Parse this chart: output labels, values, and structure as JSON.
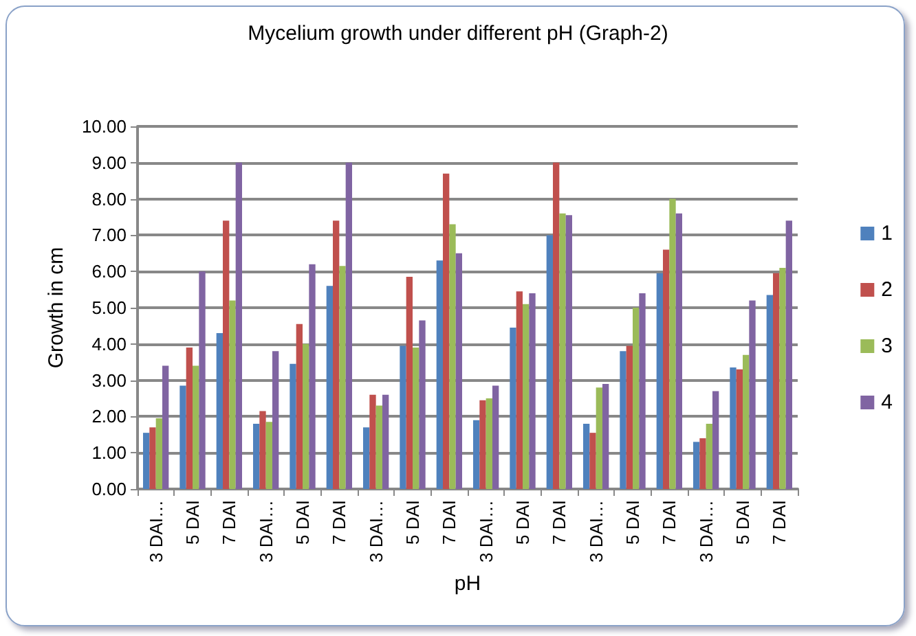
{
  "chart_data": {
    "type": "bar",
    "title": "Mycelium growth under different pH (Graph-2)",
    "xlabel": "pH",
    "ylabel": "Growth in cm",
    "categories": [
      "3 DAI…",
      "5 DAI",
      "7 DAI",
      "3 DAI…",
      "5 DAI",
      "7 DAI",
      "3 DAI…",
      "5 DAI",
      "7 DAI",
      "3 DAI…",
      "5 DAI",
      "7 DAI",
      "3 DAI…",
      "5 DAI",
      "7 DAI",
      "3 DAI…",
      "5 DAI",
      "7 DAI"
    ],
    "series": [
      {
        "name": "1",
        "color": "#4f81bd",
        "values": [
          1.55,
          2.85,
          4.3,
          1.8,
          3.45,
          5.6,
          1.7,
          3.95,
          6.3,
          1.9,
          4.45,
          7.0,
          1.8,
          3.8,
          5.95,
          1.3,
          3.35,
          5.35
        ]
      },
      {
        "name": "2",
        "color": "#c0504d",
        "values": [
          1.7,
          3.9,
          7.4,
          2.15,
          4.55,
          7.4,
          2.6,
          5.85,
          8.7,
          2.45,
          5.45,
          9.0,
          1.55,
          3.95,
          6.6,
          1.4,
          3.3,
          5.95
        ]
      },
      {
        "name": "3",
        "color": "#9bbb59",
        "values": [
          1.95,
          3.4,
          5.2,
          1.85,
          4.0,
          6.15,
          2.3,
          3.9,
          7.3,
          2.5,
          5.1,
          7.6,
          2.8,
          5.0,
          8.0,
          1.8,
          3.7,
          6.1
        ]
      },
      {
        "name": "4",
        "color": "#8064a2",
        "values": [
          3.4,
          6.0,
          9.0,
          3.8,
          6.2,
          9.0,
          2.6,
          4.65,
          6.5,
          2.85,
          5.4,
          7.55,
          2.9,
          5.4,
          7.6,
          2.7,
          5.2,
          7.4
        ]
      }
    ],
    "ylim": [
      0,
      10
    ],
    "yticks": [
      {
        "value": 0,
        "label": "0.00"
      },
      {
        "value": 1,
        "label": "1.00"
      },
      {
        "value": 2,
        "label": "2.00"
      },
      {
        "value": 3,
        "label": "3.00"
      },
      {
        "value": 4,
        "label": "4.00"
      },
      {
        "value": 5,
        "label": "5.00"
      },
      {
        "value": 6,
        "label": "6.00"
      },
      {
        "value": 7,
        "label": "7.00"
      },
      {
        "value": 8,
        "label": "8.00"
      },
      {
        "value": 9,
        "label": "9.00"
      },
      {
        "value": 10,
        "label": "10.00"
      }
    ],
    "grid": "y",
    "legend": "right"
  }
}
